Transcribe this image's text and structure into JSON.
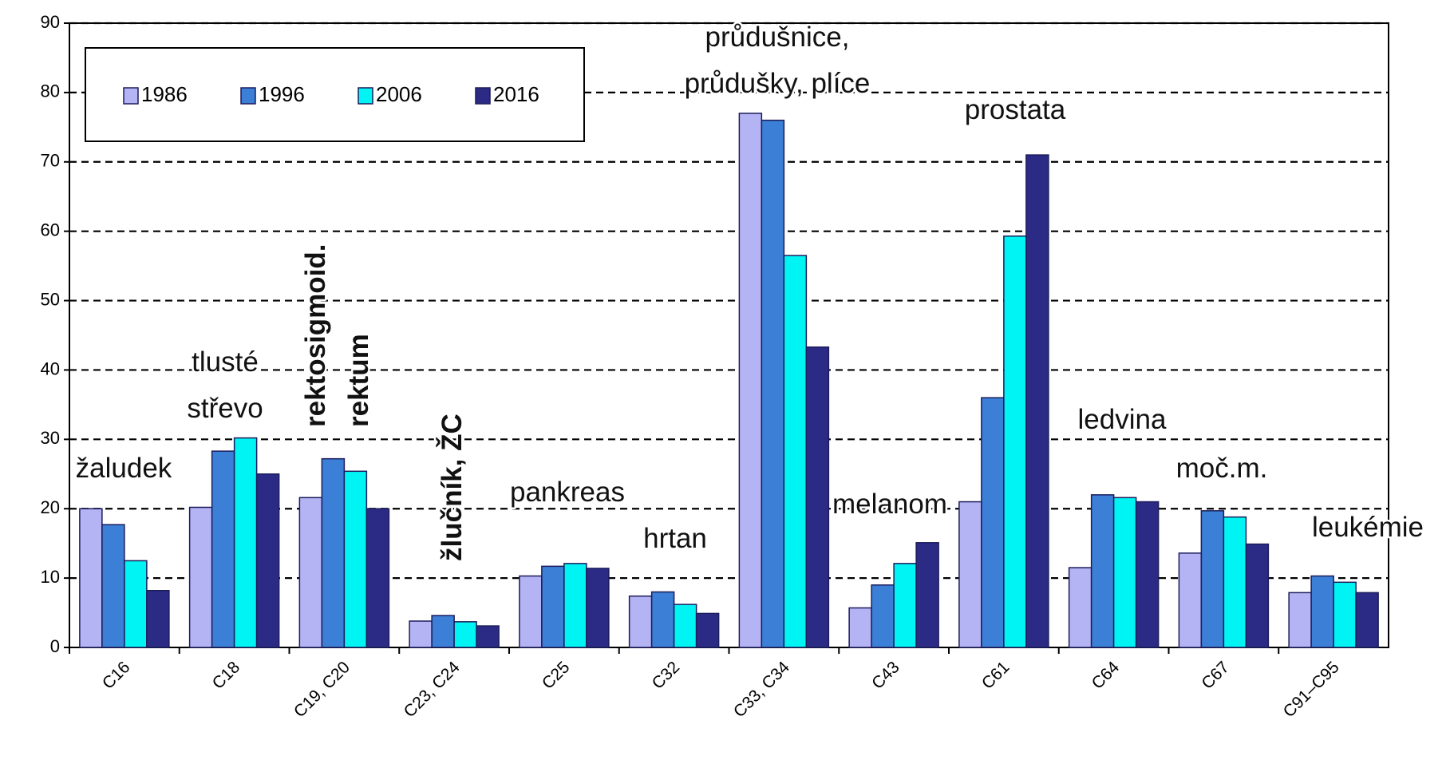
{
  "chart_data": {
    "type": "bar",
    "categories": [
      "C16",
      "C18",
      "C19, C20",
      "C23, C24",
      "C25",
      "C32",
      "C33, C34",
      "C43",
      "C61",
      "C64",
      "C67",
      "C91–C95"
    ],
    "series": [
      {
        "name": "1986",
        "color": "#b4b4f4",
        "values": [
          20,
          20.2,
          21.6,
          3.8,
          10.3,
          7.4,
          77,
          5.7,
          21,
          11.5,
          13.6,
          7.9
        ]
      },
      {
        "name": "1996",
        "color": "#3b7fd6",
        "values": [
          17.7,
          28.3,
          27.2,
          4.6,
          11.7,
          8,
          76,
          9,
          36,
          22,
          19.7,
          10.3
        ]
      },
      {
        "name": "2006",
        "color": "#00f4f4",
        "values": [
          12.5,
          30.2,
          25.4,
          3.7,
          12.1,
          6.2,
          56.5,
          12.1,
          59.3,
          21.6,
          18.8,
          9.4
        ]
      },
      {
        "name": "2016",
        "color": "#2b2b86",
        "values": [
          8.2,
          25,
          20,
          3.1,
          11.4,
          4.9,
          43.3,
          15.1,
          71,
          21,
          14.9,
          7.9
        ]
      }
    ],
    "ylim": [
      0,
      90
    ],
    "yticks": [
      0,
      10,
      20,
      30,
      40,
      50,
      60,
      70,
      80,
      90
    ],
    "grid": true,
    "legend": "top-left",
    "annotations": [
      {
        "lines": [
          "žaludek"
        ]
      },
      {
        "lines": [
          "tlusté",
          "střevo"
        ]
      },
      {
        "lines": [
          "rektosigmoid.",
          "rektum"
        ],
        "rotated": true
      },
      {
        "lines": [
          "žlučník, ŽC"
        ],
        "rotated": true
      },
      {
        "lines": [
          "pankreas"
        ]
      },
      {
        "lines": [
          "hrtan"
        ]
      },
      {
        "lines": [
          "průdušnice,",
          "průdušky, plíce"
        ]
      },
      {
        "lines": [
          "melanom"
        ]
      },
      {
        "lines": [
          "prostata"
        ]
      },
      {
        "lines": [
          "ledvina"
        ]
      },
      {
        "lines": [
          "moč.m."
        ]
      },
      {
        "lines": [
          "leukémie"
        ]
      }
    ]
  }
}
